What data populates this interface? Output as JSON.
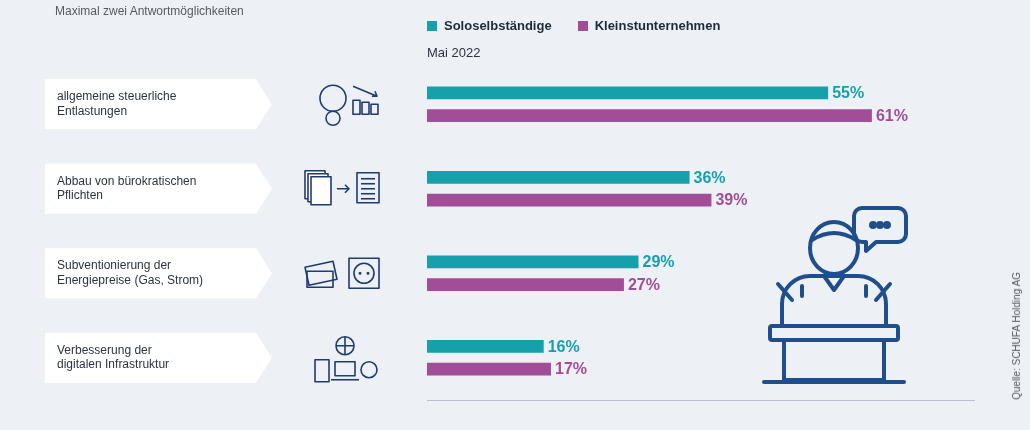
{
  "chart_data": {
    "type": "bar",
    "orientation": "horizontal",
    "subtitle": "Maximal zwei Antwortmöglichkeiten",
    "annotations": [
      "Mai 2022",
      "Quelle: SCHUFA Holding AG"
    ],
    "categories": [
      "allgemeine steuerliche Entlastungen",
      "Abbau von bürokratischen Pflichten",
      "Subventionierung der Energiepreise (Gas, Strom)",
      "Verbesserung der digitalen Infrastruktur"
    ],
    "series": [
      {
        "name": "Soloselbständige",
        "color": "#16a0ac",
        "values": [
          55,
          36,
          29,
          16
        ],
        "value_labels": [
          "55%",
          "36%",
          "29%",
          "16%"
        ]
      },
      {
        "name": "Kleinstunternehmen",
        "color": "#a24d98",
        "values": [
          61,
          39,
          27,
          17
        ],
        "value_labels": [
          "61%",
          "39%",
          "27%",
          "17%"
        ]
      }
    ],
    "xlim": [
      0,
      75
    ],
    "grid": false,
    "legend": "top",
    "data_labels": true,
    "tick_labels": "y"
  }
}
